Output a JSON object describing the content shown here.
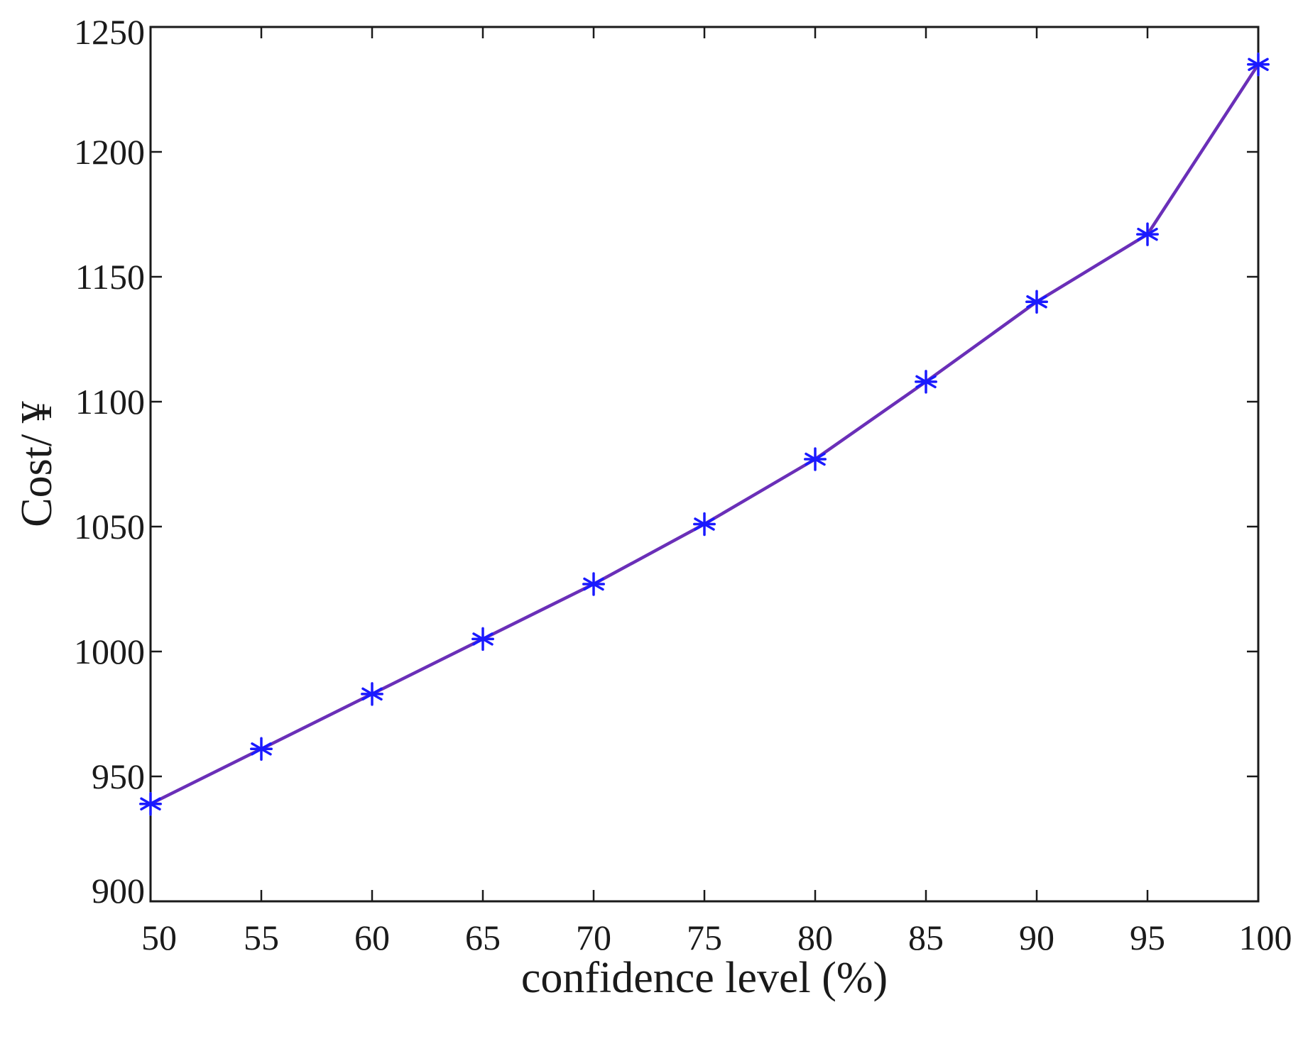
{
  "chart_data": {
    "type": "line",
    "title": "",
    "xlabel": "confidence level (%)",
    "ylabel": "Cost/ ¥",
    "xlim": [
      50,
      100
    ],
    "ylim": [
      900,
      1250
    ],
    "xticks": [
      50,
      55,
      60,
      65,
      70,
      75,
      80,
      85,
      90,
      95,
      100
    ],
    "yticks": [
      900,
      950,
      1000,
      1050,
      1100,
      1150,
      1200,
      1250
    ],
    "xtick_labels": [
      "50",
      "55",
      "60",
      "65",
      "70",
      "75",
      "80",
      "85",
      "90",
      "95",
      "100"
    ],
    "ytick_labels": [
      "900",
      "950",
      "1000",
      "1050",
      "1100",
      "1150",
      "1200",
      "1250"
    ],
    "grid": false,
    "legend": "none",
    "series": [
      {
        "x": [
          50,
          55,
          60,
          65,
          70,
          75,
          80,
          85,
          90,
          95,
          100
        ],
        "y": [
          939,
          961,
          983,
          1005,
          1027,
          1051,
          1077,
          1108,
          1140,
          1167,
          1235
        ],
        "line_color": "#6a2fb8",
        "marker": "asterisk",
        "marker_color": "#1a1aff"
      }
    ]
  }
}
